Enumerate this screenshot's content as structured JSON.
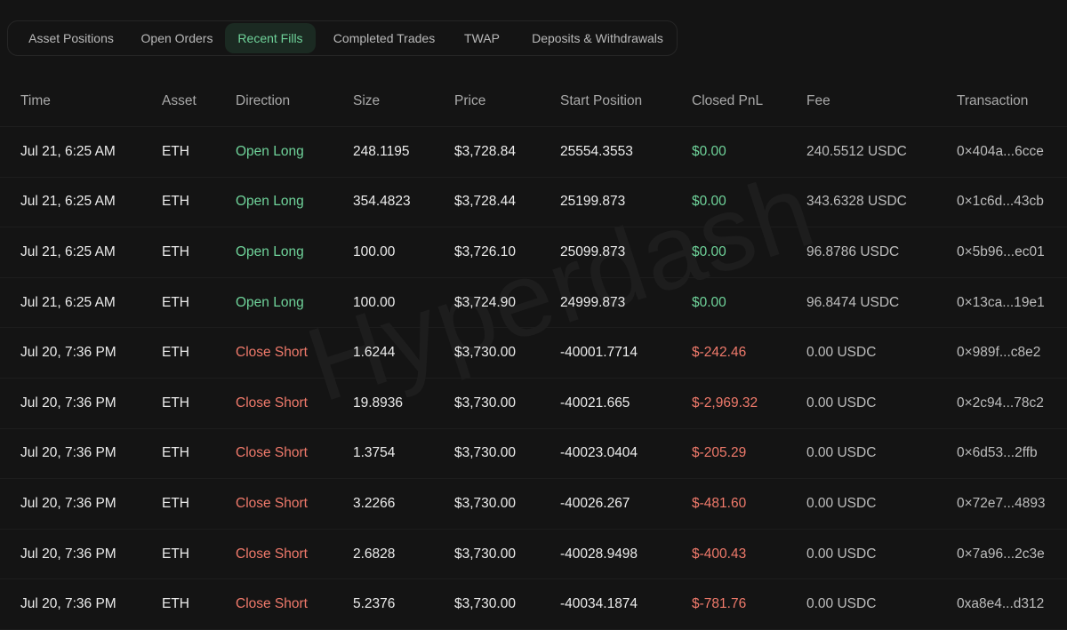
{
  "tabs": [
    {
      "label": "Asset Positions",
      "name": "tab-asset-positions"
    },
    {
      "label": "Open Orders",
      "name": "tab-open-orders"
    },
    {
      "label": "Recent Fills",
      "name": "tab-recent-fills"
    },
    {
      "label": "Completed Trades",
      "name": "tab-completed-trades"
    },
    {
      "label": "TWAP",
      "name": "tab-twap"
    },
    {
      "label": "Deposits & Withdrawals",
      "name": "tab-deposits-withdrawals"
    }
  ],
  "active_tab": 2,
  "watermark": "Hyperdash",
  "columns": [
    "Time",
    "Asset",
    "Direction",
    "Size",
    "Price",
    "Start Position",
    "Closed PnL",
    "Fee",
    "Transaction"
  ],
  "rows": [
    {
      "time": "Jul 21, 6:25 AM",
      "asset": "ETH",
      "direction": "Open Long",
      "size": "248.1195",
      "price": "$3,728.84",
      "start_position": "25554.3553",
      "closed_pnl": "$0.00",
      "fee": "240.5512 USDC",
      "transaction": "0×404a...6cce"
    },
    {
      "time": "Jul 21, 6:25 AM",
      "asset": "ETH",
      "direction": "Open Long",
      "size": "354.4823",
      "price": "$3,728.44",
      "start_position": "25199.873",
      "closed_pnl": "$0.00",
      "fee": "343.6328 USDC",
      "transaction": "0×1c6d...43cb"
    },
    {
      "time": "Jul 21, 6:25 AM",
      "asset": "ETH",
      "direction": "Open Long",
      "size": "100.00",
      "price": "$3,726.10",
      "start_position": "25099.873",
      "closed_pnl": "$0.00",
      "fee": "96.8786 USDC",
      "transaction": "0×5b96...ec01"
    },
    {
      "time": "Jul 21, 6:25 AM",
      "asset": "ETH",
      "direction": "Open Long",
      "size": "100.00",
      "price": "$3,724.90",
      "start_position": "24999.873",
      "closed_pnl": "$0.00",
      "fee": "96.8474 USDC",
      "transaction": "0×13ca...19e1"
    },
    {
      "time": "Jul 20, 7:36 PM",
      "asset": "ETH",
      "direction": "Close Short",
      "size": "1.6244",
      "price": "$3,730.00",
      "start_position": "-40001.7714",
      "closed_pnl": "$-242.46",
      "fee": "0.00 USDC",
      "transaction": "0×989f...c8e2"
    },
    {
      "time": "Jul 20, 7:36 PM",
      "asset": "ETH",
      "direction": "Close Short",
      "size": "19.8936",
      "price": "$3,730.00",
      "start_position": "-40021.665",
      "closed_pnl": "$-2,969.32",
      "fee": "0.00 USDC",
      "transaction": "0×2c94...78c2"
    },
    {
      "time": "Jul 20, 7:36 PM",
      "asset": "ETH",
      "direction": "Close Short",
      "size": "1.3754",
      "price": "$3,730.00",
      "start_position": "-40023.0404",
      "closed_pnl": "$-205.29",
      "fee": "0.00 USDC",
      "transaction": "0×6d53...2ffb"
    },
    {
      "time": "Jul 20, 7:36 PM",
      "asset": "ETH",
      "direction": "Close Short",
      "size": "3.2266",
      "price": "$3,730.00",
      "start_position": "-40026.267",
      "closed_pnl": "$-481.60",
      "fee": "0.00 USDC",
      "transaction": "0×72e7...4893"
    },
    {
      "time": "Jul 20, 7:36 PM",
      "asset": "ETH",
      "direction": "Close Short",
      "size": "2.6828",
      "price": "$3,730.00",
      "start_position": "-40028.9498",
      "closed_pnl": "$-400.43",
      "fee": "0.00 USDC",
      "transaction": "0×7a96...2c3e"
    },
    {
      "time": "Jul 20, 7:36 PM",
      "asset": "ETH",
      "direction": "Close Short",
      "size": "5.2376",
      "price": "$3,730.00",
      "start_position": "-40034.1874",
      "closed_pnl": "$-781.76",
      "fee": "0.00 USDC",
      "transaction": "0xa8e4...d312"
    }
  ],
  "colors": {
    "positive": "#6fd39a",
    "negative": "#f07a6b",
    "background": "#141414",
    "active_tab_bg": "#1b2a22"
  }
}
